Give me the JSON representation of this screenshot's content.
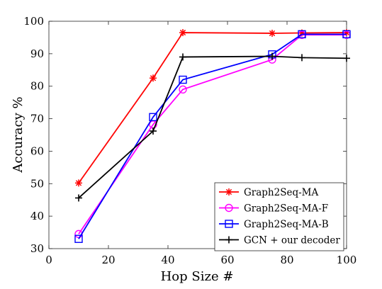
{
  "chart_data": {
    "type": "line",
    "xlabel": "Hop Size #",
    "ylabel": "Accuracy %",
    "xlim": [
      0,
      100
    ],
    "ylim": [
      30,
      100
    ],
    "xticks": [
      0,
      20,
      40,
      60,
      80,
      100
    ],
    "yticks": [
      30,
      40,
      50,
      60,
      70,
      80,
      90,
      100
    ],
    "grid": false,
    "legend_position": "bottom-right",
    "series": [
      {
        "name": "Graph2Seq-MA",
        "color": "#ff0000",
        "marker": "asterisk",
        "x": [
          10,
          35,
          45,
          75,
          85,
          100
        ],
        "y": [
          50.2,
          82.5,
          96.5,
          96.3,
          96.4,
          96.5
        ]
      },
      {
        "name": "Graph2Seq-MA-F",
        "color": "#ff00ff",
        "marker": "circle",
        "x": [
          10,
          35,
          45,
          75,
          85,
          100
        ],
        "y": [
          34.5,
          68.2,
          79.0,
          88.2,
          95.8,
          95.8
        ]
      },
      {
        "name": "Graph2Seq-MA-B",
        "color": "#0000ff",
        "marker": "square",
        "x": [
          10,
          35,
          45,
          75,
          85,
          100
        ],
        "y": [
          33.0,
          70.5,
          82.0,
          89.8,
          96.0,
          96.0
        ]
      },
      {
        "name": "GCN + our decoder",
        "color": "#000000",
        "marker": "plus",
        "x": [
          10,
          35,
          45,
          75,
          85,
          100
        ],
        "y": [
          45.6,
          66.2,
          89.0,
          89.2,
          88.8,
          88.6
        ]
      }
    ]
  }
}
